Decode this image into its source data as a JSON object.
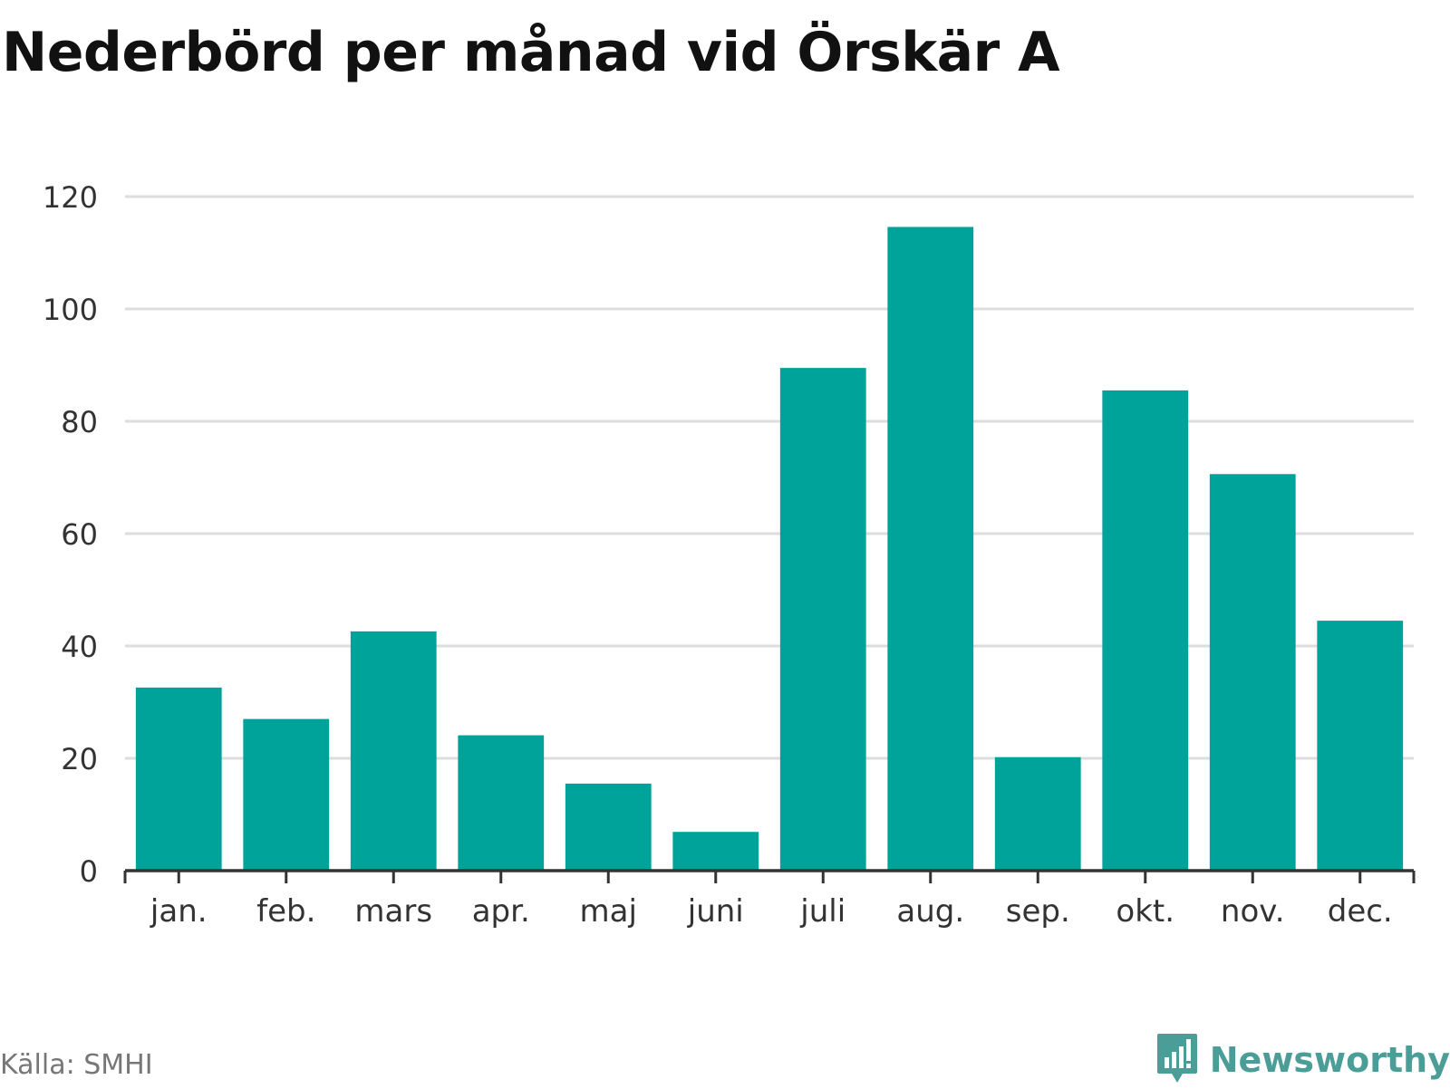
{
  "title": "Nederbörd per månad vid Örskär A",
  "source": "Källa: SMHI",
  "brand": "Newsworthy",
  "colors": {
    "bar": "#00a39a",
    "grid": "#dddddd",
    "axis": "#333333",
    "tick_text": "#333333",
    "brand": "#4a9e97"
  },
  "chart_data": {
    "type": "bar",
    "title": "Nederbörd per månad vid Örskär A",
    "xlabel": "",
    "ylabel": "",
    "categories": [
      "jan.",
      "feb.",
      "mars",
      "apr.",
      "maj",
      "juni",
      "juli",
      "aug.",
      "sep.",
      "okt.",
      "nov.",
      "dec."
    ],
    "values": [
      32.6,
      27.0,
      42.6,
      24.1,
      15.5,
      6.9,
      89.5,
      114.6,
      20.2,
      85.5,
      70.6,
      44.5
    ],
    "ylim": [
      0,
      120
    ],
    "yticks": [
      0,
      20,
      40,
      60,
      80,
      100,
      120
    ],
    "grid": true,
    "legend": "none"
  }
}
